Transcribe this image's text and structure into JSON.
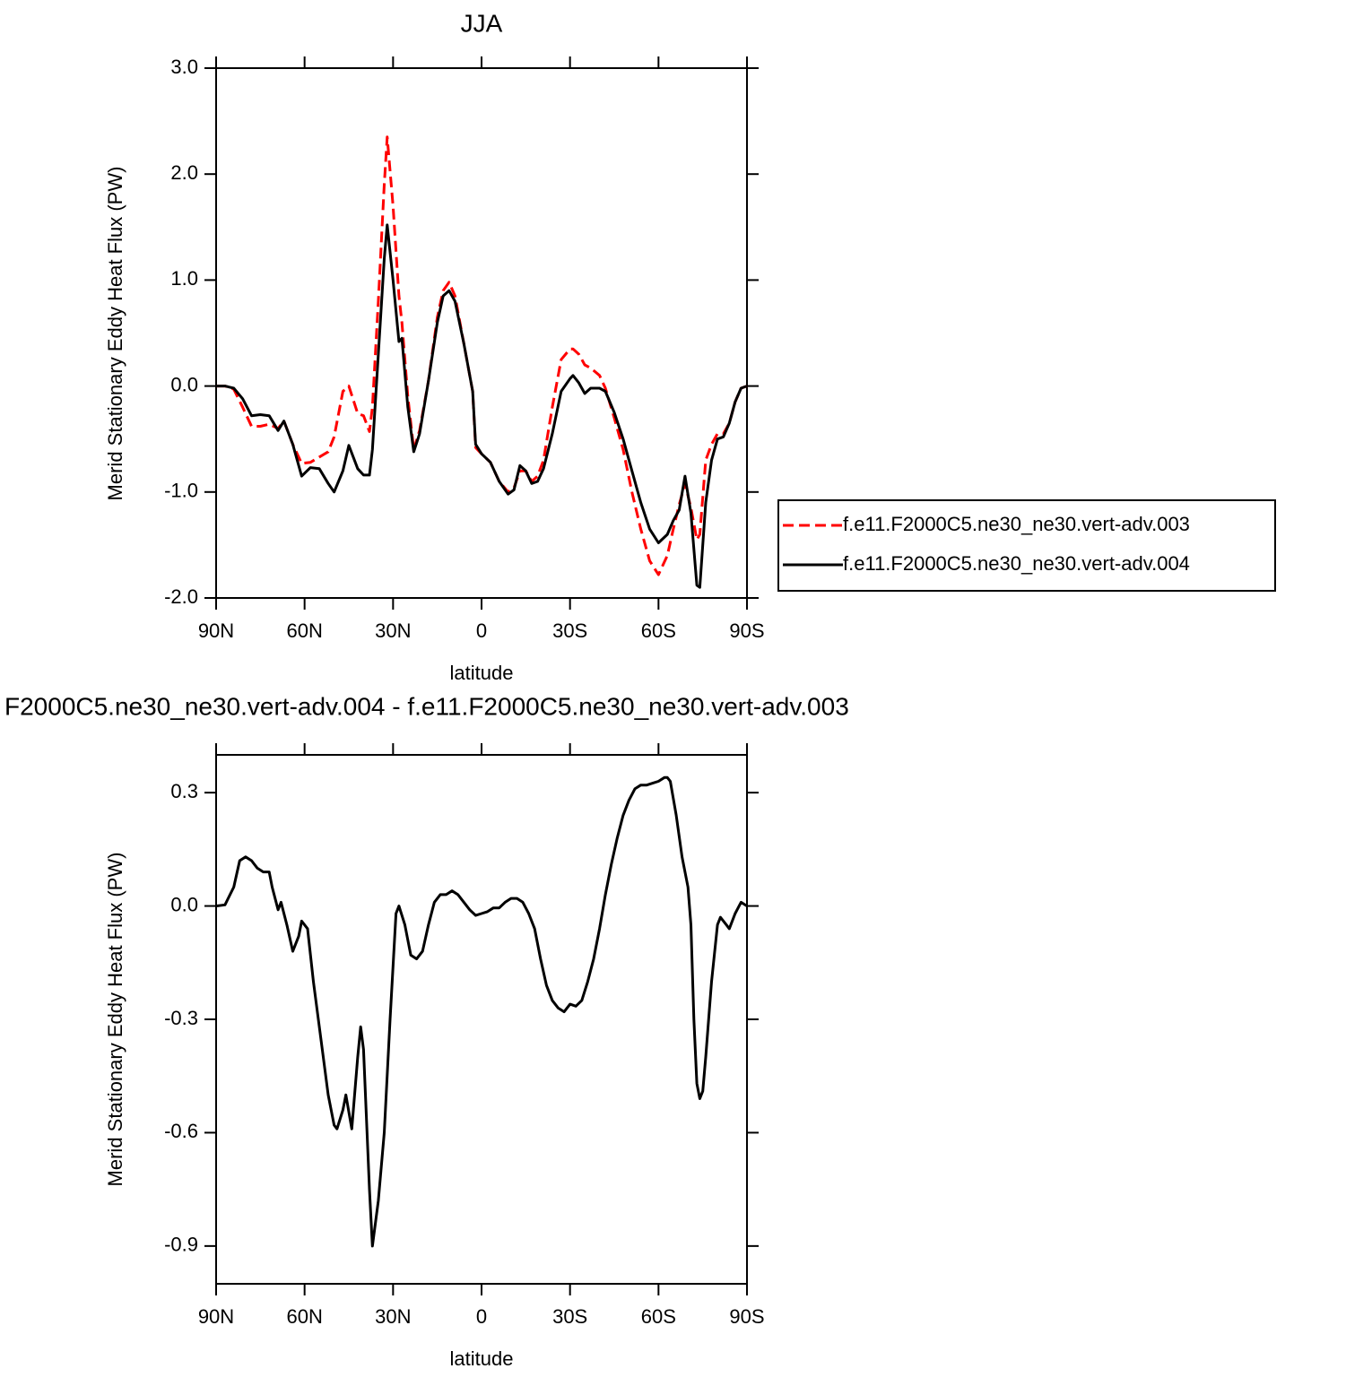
{
  "chart_data": [
    {
      "type": "line",
      "title": "JJA",
      "x_label": "latitude",
      "y_label": "Merid Stationary Eddy Heat Flux (PW)",
      "x": [
        90,
        87,
        84,
        81,
        78,
        75,
        72,
        69,
        67,
        64,
        61,
        58,
        55,
        52,
        50,
        47,
        45,
        42,
        40,
        38,
        37,
        35,
        33,
        32,
        30,
        28,
        27,
        25,
        23,
        21,
        18,
        15,
        13,
        11,
        9,
        6,
        3,
        2,
        0,
        -3,
        -6,
        -9,
        -11,
        -13,
        -15,
        -17,
        -19,
        -21,
        -24,
        -27,
        -30,
        -31,
        -33,
        -35,
        -37,
        -40,
        -42,
        -45,
        -48,
        -51,
        -54,
        -57,
        -60,
        -63,
        -65,
        -67,
        -69,
        -71,
        -73,
        -74,
        -76,
        -78,
        -80,
        -82,
        -84,
        -86,
        -88,
        -90
      ],
      "series": [
        {
          "name": "f.e11.F2000C5.ne30_ne30.vert-adv.003",
          "color": "#ff0000",
          "line_style": "dashed",
          "values": [
            0,
            0,
            -0.03,
            -0.2,
            -0.38,
            -0.38,
            -0.36,
            -0.4,
            -0.33,
            -0.55,
            -0.73,
            -0.72,
            -0.67,
            -0.62,
            -0.48,
            -0.05,
            0,
            -0.26,
            -0.28,
            -0.43,
            -0.2,
            0.8,
            1.9,
            2.35,
            1.7,
            0.85,
            0.6,
            -0.1,
            -0.6,
            -0.42,
            0.05,
            0.65,
            0.9,
            0.98,
            0.85,
            0.4,
            -0.05,
            -0.58,
            -0.64,
            -0.72,
            -0.9,
            -1.0,
            -0.96,
            -0.8,
            -0.8,
            -0.9,
            -0.85,
            -0.7,
            -0.2,
            0.25,
            0.35,
            0.35,
            0.3,
            0.2,
            0.17,
            0.1,
            -0.02,
            -0.3,
            -0.6,
            -1.0,
            -1.35,
            -1.65,
            -1.78,
            -1.6,
            -1.35,
            -1.12,
            -0.92,
            -1.15,
            -1.45,
            -1.4,
            -0.7,
            -0.55,
            -0.45,
            -0.45,
            -0.35,
            -0.15,
            -0.02,
            0
          ]
        },
        {
          "name": "f.e11.F2000C5.ne30_ne30.vert-adv.004",
          "color": "#000000",
          "line_style": "solid",
          "values": [
            0,
            0,
            -0.02,
            -0.12,
            -0.28,
            -0.27,
            -0.28,
            -0.42,
            -0.33,
            -0.55,
            -0.85,
            -0.77,
            -0.78,
            -0.92,
            -1.0,
            -0.8,
            -0.56,
            -0.78,
            -0.84,
            -0.84,
            -0.6,
            0.3,
            1.2,
            1.52,
            1.0,
            0.42,
            0.45,
            -0.2,
            -0.62,
            -0.45,
            0.05,
            0.6,
            0.85,
            0.9,
            0.8,
            0.4,
            -0.05,
            -0.55,
            -0.64,
            -0.72,
            -0.9,
            -1.02,
            -0.98,
            -0.75,
            -0.8,
            -0.92,
            -0.9,
            -0.78,
            -0.45,
            -0.05,
            0.07,
            0.1,
            0.03,
            -0.07,
            -0.02,
            -0.02,
            -0.05,
            -0.25,
            -0.5,
            -0.8,
            -1.1,
            -1.35,
            -1.48,
            -1.4,
            -1.27,
            -1.17,
            -0.85,
            -1.2,
            -1.88,
            -1.9,
            -1.1,
            -0.7,
            -0.5,
            -0.48,
            -0.35,
            -0.15,
            -0.02,
            0
          ]
        }
      ],
      "xlim": [
        90,
        -90
      ],
      "xticks": [
        {
          "value": 90,
          "label": "90N"
        },
        {
          "value": 60,
          "label": "60N"
        },
        {
          "value": 30,
          "label": "30N"
        },
        0,
        {
          "value": -30,
          "label": "30S"
        },
        {
          "value": -60,
          "label": "60S"
        },
        {
          "value": -90,
          "label": "90S"
        }
      ],
      "ylim": [
        -2,
        3
      ],
      "yticks": [
        {
          "value": 3,
          "label": "3.0"
        },
        {
          "value": 2,
          "label": "2.0"
        },
        {
          "value": 1,
          "label": "1.0"
        },
        {
          "value": 0,
          "label": "0.0"
        },
        {
          "value": -1,
          "label": "-1.0"
        },
        {
          "value": -2,
          "label": "-2.0"
        }
      ],
      "legend": "right"
    },
    {
      "type": "line",
      "title": "F2000C5.ne30_ne30.vert-adv.004 - f.e11.F2000C5.ne30_ne30.vert-adv.003",
      "x_label": "latitude",
      "y_label": "Merid Stationary Eddy Heat Flux (PW)",
      "x": [
        90,
        87,
        84,
        82,
        80,
        78,
        76,
        74,
        72,
        71,
        69,
        68,
        66,
        64,
        62,
        61,
        59,
        57,
        54,
        52,
        50,
        49,
        47,
        46,
        44,
        42,
        41,
        40,
        38,
        37,
        35,
        33,
        31,
        29,
        28,
        26,
        24,
        22,
        20,
        18,
        16,
        14,
        12,
        10,
        8,
        6,
        4,
        2,
        0,
        -2,
        -4,
        -6,
        -8,
        -10,
        -12,
        -14,
        -16,
        -18,
        -20,
        -22,
        -24,
        -26,
        -28,
        -30,
        -32,
        -34,
        -36,
        -38,
        -40,
        -42,
        -44,
        -46,
        -48,
        -50,
        -52,
        -54,
        -56,
        -58,
        -60,
        -62,
        -63,
        -64,
        -66,
        -68,
        -70,
        -71,
        -72,
        -73,
        -74,
        -75,
        -76,
        -78,
        -80,
        -81,
        -83,
        -84,
        -86,
        -88,
        -89,
        -90
      ],
      "series": [
        {
          "color": "#000000",
          "line_style": "solid",
          "values": [
            0,
            0.003,
            0.05,
            0.12,
            0.13,
            0.12,
            0.1,
            0.09,
            0.09,
            0.05,
            -0.01,
            0.01,
            -0.05,
            -0.12,
            -0.08,
            -0.04,
            -0.06,
            -0.2,
            -0.38,
            -0.5,
            -0.58,
            -0.59,
            -0.54,
            -0.5,
            -0.59,
            -0.4,
            -0.32,
            -0.38,
            -0.75,
            -0.9,
            -0.78,
            -0.6,
            -0.3,
            -0.02,
            0,
            -0.05,
            -0.13,
            -0.14,
            -0.12,
            -0.05,
            0.01,
            0.03,
            0.03,
            0.04,
            0.03,
            0.01,
            -0.01,
            -0.025,
            -0.02,
            -0.015,
            -0.005,
            -0.005,
            0.01,
            0.02,
            0.02,
            0.01,
            -0.02,
            -0.06,
            -0.14,
            -0.21,
            -0.25,
            -0.27,
            -0.28,
            -0.26,
            -0.265,
            -0.25,
            -0.2,
            -0.14,
            -0.06,
            0.03,
            0.11,
            0.18,
            0.24,
            0.28,
            0.31,
            0.32,
            0.32,
            0.325,
            0.33,
            0.34,
            0.34,
            0.33,
            0.24,
            0.13,
            0.05,
            -0.05,
            -0.3,
            -0.47,
            -0.51,
            -0.49,
            -0.4,
            -0.2,
            -0.05,
            -0.03,
            -0.05,
            -0.06,
            -0.02,
            0.01,
            0.005,
            0
          ]
        }
      ],
      "xlim": [
        90,
        -90
      ],
      "xticks": [
        {
          "value": 90,
          "label": "90N"
        },
        {
          "value": 60,
          "label": "60N"
        },
        {
          "value": 30,
          "label": "30N"
        },
        0,
        {
          "value": -30,
          "label": "30S"
        },
        {
          "value": -60,
          "label": "60S"
        },
        {
          "value": -90,
          "label": "90S"
        }
      ],
      "ylim": [
        -1.0,
        0.4
      ],
      "yticks": [
        {
          "value": 0.3,
          "label": "0.3"
        },
        {
          "value": 0,
          "label": "0.0"
        },
        {
          "value": -0.3,
          "label": "-0.3"
        },
        {
          "value": -0.6,
          "label": "-0.6"
        },
        {
          "value": -0.9,
          "label": "-0.9"
        }
      ]
    }
  ]
}
